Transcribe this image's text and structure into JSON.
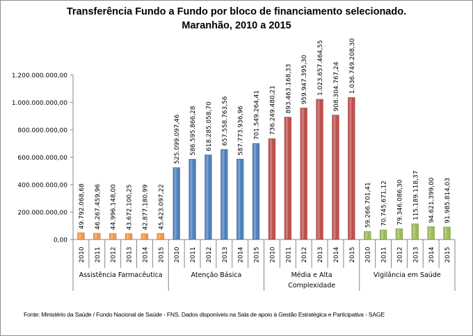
{
  "chart_data": {
    "type": "bar",
    "title": "Transferência Fundo a Fundo por bloco de financiamento selecionado.",
    "subtitle": "Maranhão, 2010 a 2015",
    "ylim": [
      0,
      1200000000
    ],
    "yticks": [
      "0,00",
      "200.000.000,00",
      "400.000.000,00",
      "600.000.000,00",
      "800.000.000,00",
      "1.000.000.000,00",
      "1.200.000.000,00"
    ],
    "grid": false,
    "legend": "none",
    "groups": [
      {
        "name": "Assistência Farmacêutica",
        "color": "#f79646",
        "years": [
          "2010",
          "2011",
          "2012",
          "2013",
          "2014",
          "2015"
        ],
        "values": [
          49792068.68,
          46267459.96,
          44996148.0,
          43672100.25,
          42877180.99,
          45423097.22
        ],
        "labels": [
          "49.792.068,68",
          "46.267.459,96",
          "44.996.148,00",
          "43.672.100,25",
          "42.877.180,99",
          "45.423.097,22"
        ]
      },
      {
        "name": "Atenção Básica",
        "color": "#4f81bd",
        "years": [
          "2010",
          "2011",
          "2012",
          "2013",
          "2014",
          "2015"
        ],
        "values": [
          525099097.46,
          586595866.28,
          618285058.7,
          657558763.56,
          587773936.96,
          701549264.41
        ],
        "labels": [
          "525.099.097,46",
          "586.595.866,28",
          "618.285.058,70",
          "657.558.763,56",
          "587.773.936,96",
          "701.549.264,41"
        ]
      },
      {
        "name": "Média e Alta Complexidade",
        "color": "#c0504d",
        "years": [
          "2010",
          "2011",
          "2012",
          "2013",
          "2014",
          "2015"
        ],
        "values": [
          736249480.21,
          893463168.33,
          959947395.3,
          1023657464.55,
          908304767.24,
          1036749208.3
        ],
        "labels": [
          "736.249.480,21",
          "893.463.168,33",
          "959.947.395,30",
          "1.023.657.464,55",
          "908.304.767,24",
          "1.036.749.208,30"
        ]
      },
      {
        "name": "Vigilância em Saúde",
        "color": "#9bbb59",
        "years": [
          "2010",
          "2011",
          "2012",
          "2013",
          "2014",
          "2015"
        ],
        "values": [
          59266701.41,
          70745671.12,
          79346086.3,
          115189118.37,
          94621399.0,
          91985814.03
        ],
        "labels": [
          "59.266.701,41",
          "70.745.671,12",
          "79.346.086,30",
          "115.189.118,37",
          "94.621.399,00",
          "91.985.814,03"
        ]
      }
    ]
  },
  "source": "Fonte: Ministério da Saúde / Fundo Nacional de Saúde - FNS. Dados disponíveis na Sala de apoio à Gestão Estratégica e Participativa - SAGE"
}
